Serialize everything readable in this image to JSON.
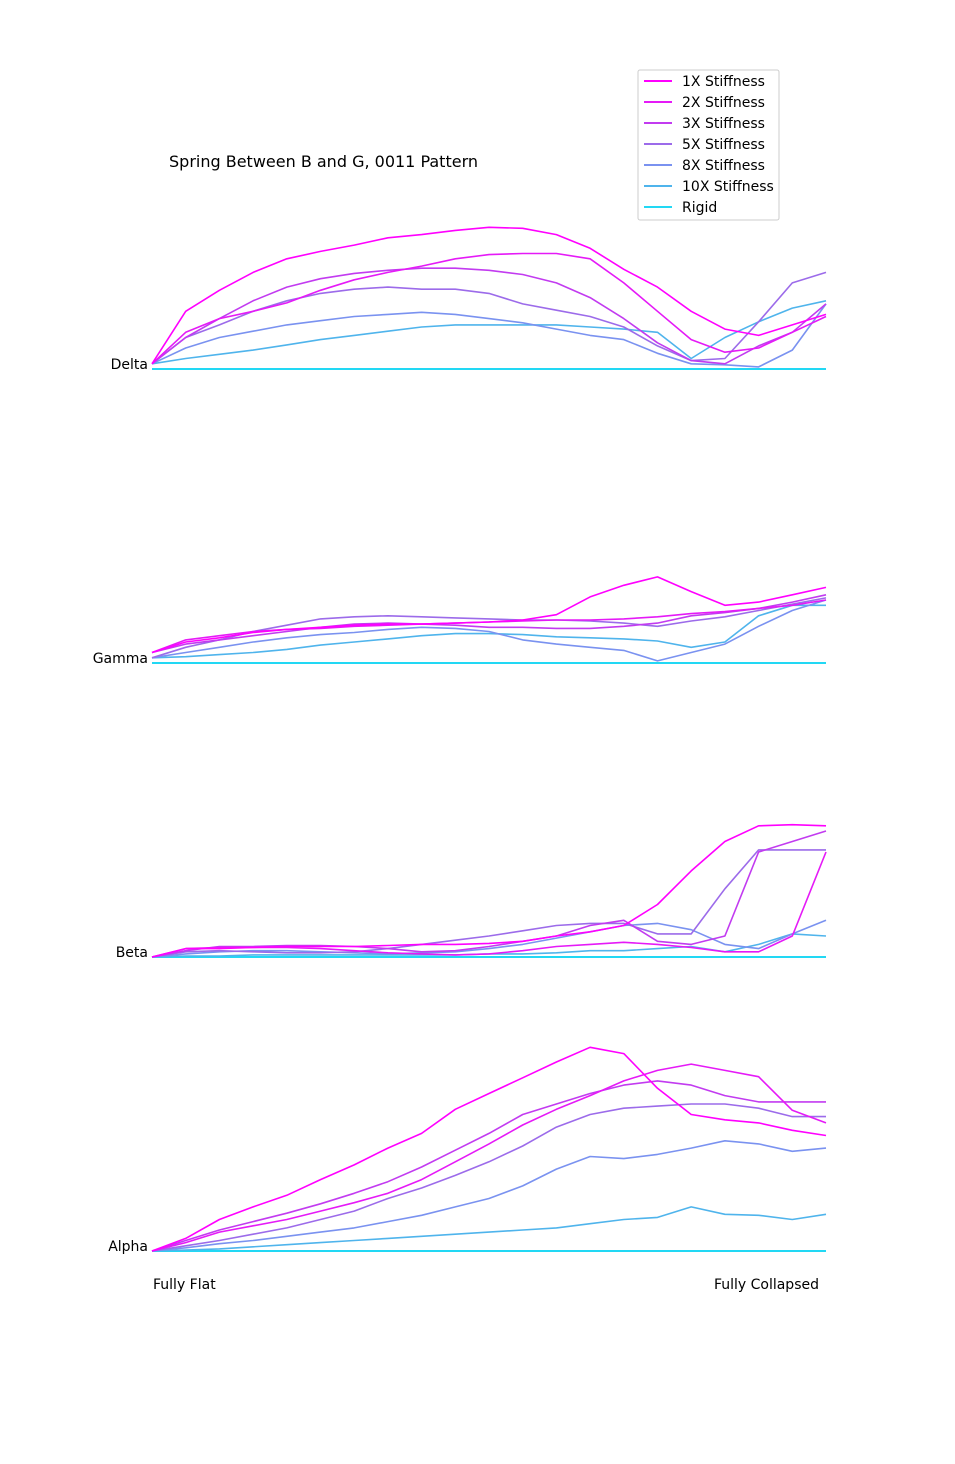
{
  "chart_data": {
    "type": "line",
    "title": "Spring Between B and G, 0011 Pattern",
    "x_start_label": "Fully Flat",
    "x_end_label": "Fully Collapsed",
    "grid": false,
    "legend_placement": "top-right",
    "legend": [
      {
        "name": "1X Stiffness",
        "color": "#ff00ff"
      },
      {
        "name": "2X Stiffness",
        "color": "#e51af7"
      },
      {
        "name": "3X Stiffness",
        "color": "#c23bf0"
      },
      {
        "name": "5X Stiffness",
        "color": "#9c6bea"
      },
      {
        "name": "8X Stiffness",
        "color": "#7a92f0"
      },
      {
        "name": "10X Stiffness",
        "color": "#4fb4ec"
      },
      {
        "name": "Rigid",
        "color": "#22d8f4"
      }
    ],
    "x": [
      0,
      0.05,
      0.1,
      0.15,
      0.2,
      0.25,
      0.3,
      0.35,
      0.4,
      0.45,
      0.5,
      0.55,
      0.6,
      0.65,
      0.7,
      0.75,
      0.8,
      0.85,
      0.9,
      0.95,
      1.0
    ],
    "panels": [
      {
        "label": "Delta",
        "series": [
          {
            "name": "1X Stiffness",
            "values": [
              0.05,
              0.55,
              0.75,
              0.92,
              1.05,
              1.12,
              1.18,
              1.25,
              1.28,
              1.32,
              1.35,
              1.34,
              1.28,
              1.15,
              0.95,
              0.78,
              0.55,
              0.38,
              0.32,
              0.42,
              0.52
            ]
          },
          {
            "name": "2X Stiffness",
            "values": [
              0.05,
              0.35,
              0.48,
              0.55,
              0.63,
              0.75,
              0.85,
              0.92,
              0.98,
              1.05,
              1.09,
              1.1,
              1.1,
              1.05,
              0.82,
              0.55,
              0.28,
              0.16,
              0.2,
              0.35,
              0.5
            ]
          },
          {
            "name": "3X Stiffness",
            "values": [
              0.05,
              0.3,
              0.48,
              0.65,
              0.78,
              0.86,
              0.91,
              0.94,
              0.96,
              0.96,
              0.94,
              0.9,
              0.82,
              0.68,
              0.48,
              0.25,
              0.08,
              0.05,
              0.22,
              0.35,
              0.62
            ]
          },
          {
            "name": "5X Stiffness",
            "values": [
              0.05,
              0.3,
              0.42,
              0.55,
              0.65,
              0.72,
              0.76,
              0.78,
              0.76,
              0.76,
              0.72,
              0.62,
              0.56,
              0.5,
              0.4,
              0.22,
              0.08,
              0.1,
              0.45,
              0.82,
              0.92
            ]
          },
          {
            "name": "8X Stiffness",
            "values": [
              0.05,
              0.2,
              0.3,
              0.36,
              0.42,
              0.46,
              0.5,
              0.52,
              0.54,
              0.52,
              0.48,
              0.44,
              0.38,
              0.32,
              0.28,
              0.15,
              0.05,
              0.04,
              0.02,
              0.18,
              0.62
            ]
          },
          {
            "name": "10X Stiffness",
            "values": [
              0.05,
              0.1,
              0.14,
              0.18,
              0.23,
              0.28,
              0.32,
              0.36,
              0.4,
              0.42,
              0.42,
              0.42,
              0.42,
              0.4,
              0.38,
              0.35,
              0.1,
              0.3,
              0.45,
              0.58,
              0.65
            ]
          },
          {
            "name": "Rigid",
            "values": [
              0,
              0,
              0,
              0,
              0,
              0,
              0,
              0,
              0,
              0,
              0,
              0,
              0,
              0,
              0,
              0,
              0,
              0,
              0,
              0,
              0
            ]
          }
        ]
      },
      {
        "label": "Gamma",
        "series": [
          {
            "name": "1X Stiffness",
            "values": [
              0.1,
              0.2,
              0.24,
              0.29,
              0.32,
              0.34,
              0.36,
              0.37,
              0.37,
              0.38,
              0.39,
              0.41,
              0.46,
              0.63,
              0.74,
              0.82,
              0.68,
              0.55,
              0.58,
              0.65,
              0.72
            ]
          },
          {
            "name": "2X Stiffness",
            "values": [
              0.1,
              0.22,
              0.26,
              0.3,
              0.32,
              0.33,
              0.35,
              0.36,
              0.37,
              0.38,
              0.39,
              0.4,
              0.41,
              0.41,
              0.42,
              0.44,
              0.47,
              0.49,
              0.52,
              0.55,
              0.6
            ]
          },
          {
            "name": "3X Stiffness",
            "values": [
              0.1,
              0.18,
              0.22,
              0.26,
              0.3,
              0.34,
              0.37,
              0.38,
              0.37,
              0.36,
              0.34,
              0.34,
              0.33,
              0.33,
              0.35,
              0.38,
              0.45,
              0.48,
              0.52,
              0.58,
              0.65
            ]
          },
          {
            "name": "5X Stiffness",
            "values": [
              0.05,
              0.15,
              0.22,
              0.3,
              0.36,
              0.42,
              0.44,
              0.45,
              0.44,
              0.43,
              0.42,
              0.41,
              0.41,
              0.4,
              0.38,
              0.35,
              0.4,
              0.44,
              0.5,
              0.56,
              0.62
            ]
          },
          {
            "name": "8X Stiffness",
            "values": [
              0.05,
              0.1,
              0.15,
              0.2,
              0.24,
              0.27,
              0.29,
              0.32,
              0.34,
              0.33,
              0.3,
              0.22,
              0.18,
              0.15,
              0.12,
              0.02,
              0.1,
              0.18,
              0.35,
              0.5,
              0.6
            ]
          },
          {
            "name": "10X Stiffness",
            "values": [
              0.05,
              0.06,
              0.08,
              0.1,
              0.13,
              0.17,
              0.2,
              0.23,
              0.26,
              0.28,
              0.28,
              0.27,
              0.25,
              0.24,
              0.23,
              0.21,
              0.15,
              0.2,
              0.45,
              0.55,
              0.55
            ]
          },
          {
            "name": "Rigid",
            "values": [
              0,
              0,
              0,
              0,
              0,
              0,
              0,
              0,
              0,
              0,
              0,
              0,
              0,
              0,
              0,
              0,
              0,
              0,
              0,
              0,
              0
            ]
          }
        ]
      },
      {
        "label": "Beta",
        "series": [
          {
            "name": "1X Stiffness",
            "values": [
              0,
              0.08,
              0.08,
              0.09,
              0.1,
              0.1,
              0.1,
              0.11,
              0.12,
              0.12,
              0.13,
              0.15,
              0.2,
              0.24,
              0.3,
              0.5,
              0.82,
              1.1,
              1.25,
              1.26,
              1.25
            ]
          },
          {
            "name": "2X Stiffness",
            "values": [
              0,
              0.08,
              0.09,
              0.09,
              0.09,
              0.08,
              0.06,
              0.04,
              0.03,
              0.02,
              0.03,
              0.06,
              0.1,
              0.12,
              0.14,
              0.12,
              0.09,
              0.05,
              0.05,
              0.2,
              1.0
            ]
          },
          {
            "name": "3X Stiffness",
            "values": [
              0,
              0.06,
              0.1,
              0.1,
              0.11,
              0.11,
              0.1,
              0.08,
              0.05,
              0.06,
              0.1,
              0.15,
              0.2,
              0.3,
              0.35,
              0.15,
              0.12,
              0.2,
              1.0,
              1.1,
              1.2
            ]
          },
          {
            "name": "5X Stiffness",
            "values": [
              0,
              0.05,
              0.06,
              0.05,
              0.04,
              0.04,
              0.05,
              0.08,
              0.12,
              0.16,
              0.2,
              0.25,
              0.3,
              0.32,
              0.32,
              0.22,
              0.22,
              0.65,
              1.02,
              1.02,
              1.02
            ]
          },
          {
            "name": "8X Stiffness",
            "values": [
              0,
              0.03,
              0.05,
              0.06,
              0.06,
              0.05,
              0.04,
              0.03,
              0.04,
              0.05,
              0.08,
              0.12,
              0.18,
              0.24,
              0.3,
              0.32,
              0.26,
              0.12,
              0.08,
              0.22,
              0.35
            ]
          },
          {
            "name": "10X Stiffness",
            "values": [
              0,
              0.01,
              0.01,
              0.02,
              0.02,
              0.02,
              0.02,
              0.02,
              0.02,
              0.02,
              0.03,
              0.03,
              0.04,
              0.06,
              0.06,
              0.08,
              0.1,
              0.05,
              0.12,
              0.22,
              0.2
            ]
          },
          {
            "name": "Rigid",
            "values": [
              0,
              0,
              0,
              0,
              0,
              0,
              0,
              0,
              0,
              0,
              0,
              0,
              0,
              0,
              0,
              0,
              0,
              0,
              0,
              0,
              0
            ]
          }
        ]
      },
      {
        "label": "Alpha",
        "series": [
          {
            "name": "1X Stiffness",
            "values": [
              0.0,
              0.12,
              0.3,
              0.42,
              0.53,
              0.68,
              0.82,
              0.98,
              1.12,
              1.35,
              1.5,
              1.65,
              1.8,
              1.94,
              1.88,
              1.55,
              1.3,
              1.25,
              1.22,
              1.15,
              1.1
            ]
          },
          {
            "name": "2X Stiffness",
            "values": [
              0.0,
              0.08,
              0.18,
              0.24,
              0.3,
              0.38,
              0.46,
              0.55,
              0.68,
              0.85,
              1.02,
              1.2,
              1.35,
              1.48,
              1.62,
              1.72,
              1.78,
              1.72,
              1.66,
              1.34,
              1.22
            ]
          },
          {
            "name": "3X Stiffness",
            "values": [
              0.0,
              0.1,
              0.2,
              0.28,
              0.36,
              0.45,
              0.55,
              0.66,
              0.8,
              0.96,
              1.12,
              1.3,
              1.4,
              1.5,
              1.58,
              1.62,
              1.58,
              1.48,
              1.42,
              1.42,
              1.42
            ]
          },
          {
            "name": "5X Stiffness",
            "values": [
              0.0,
              0.05,
              0.1,
              0.16,
              0.22,
              0.3,
              0.38,
              0.5,
              0.6,
              0.72,
              0.85,
              1.0,
              1.18,
              1.3,
              1.36,
              1.38,
              1.4,
              1.4,
              1.36,
              1.28,
              1.28
            ]
          },
          {
            "name": "8X Stiffness",
            "values": [
              0.0,
              0.03,
              0.07,
              0.1,
              0.14,
              0.18,
              0.22,
              0.28,
              0.34,
              0.42,
              0.5,
              0.62,
              0.78,
              0.9,
              0.88,
              0.92,
              0.98,
              1.05,
              1.02,
              0.95,
              0.98
            ]
          },
          {
            "name": "10X Stiffness",
            "values": [
              0.0,
              0.01,
              0.02,
              0.04,
              0.06,
              0.08,
              0.1,
              0.12,
              0.14,
              0.16,
              0.18,
              0.2,
              0.22,
              0.26,
              0.3,
              0.32,
              0.42,
              0.35,
              0.34,
              0.3,
              0.35
            ]
          },
          {
            "name": "Rigid",
            "values": [
              0,
              0,
              0,
              0,
              0,
              0,
              0,
              0,
              0,
              0,
              0,
              0,
              0,
              0,
              0,
              0,
              0,
              0,
              0,
              0,
              0
            ]
          }
        ]
      }
    ]
  }
}
